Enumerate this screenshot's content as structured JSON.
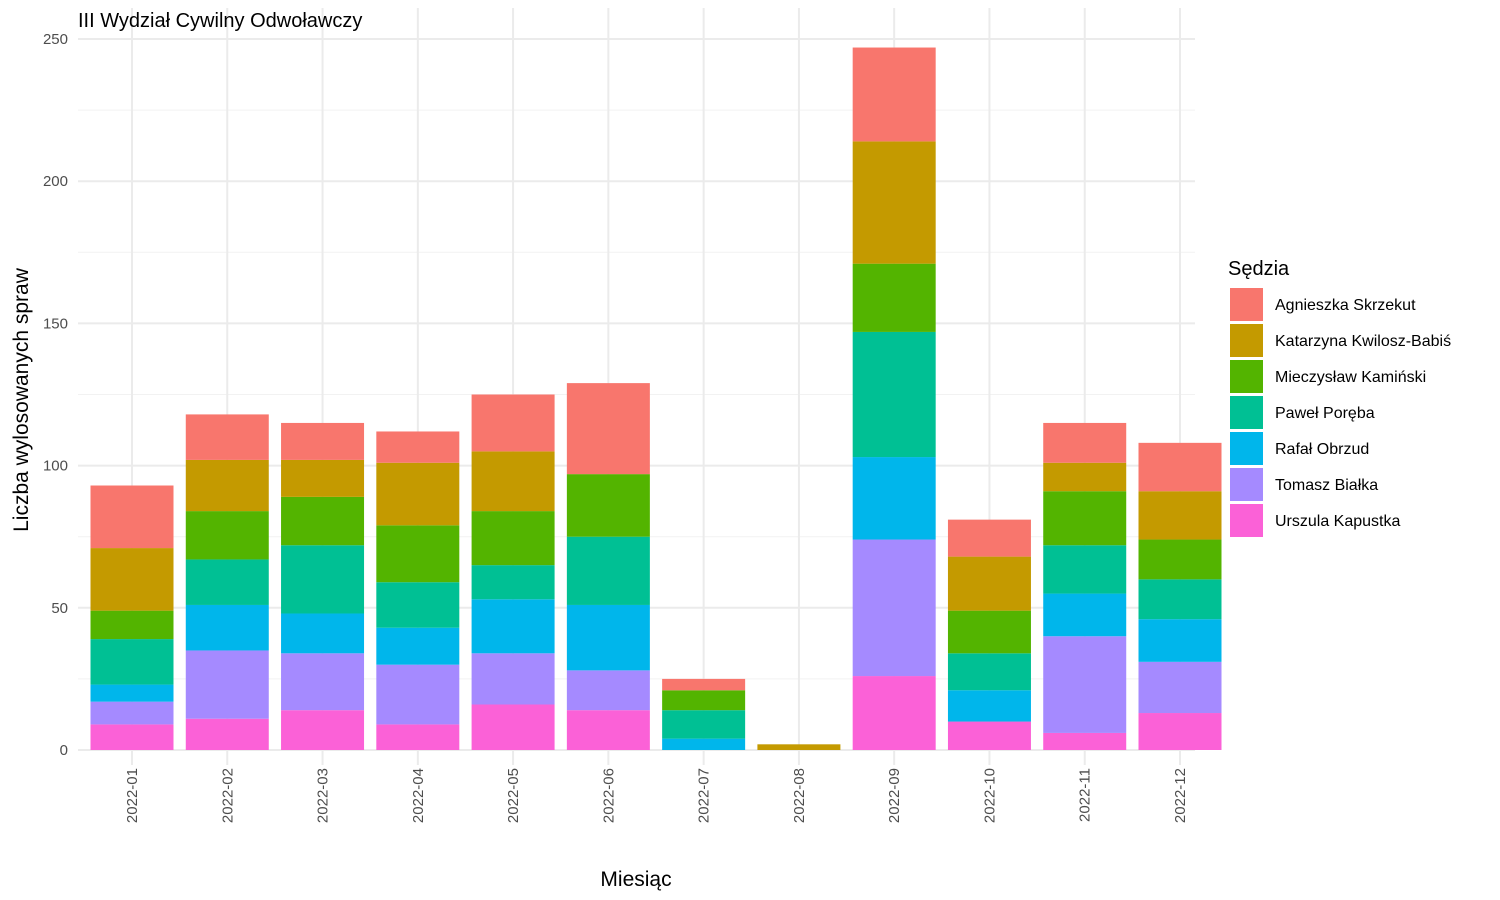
{
  "chart_data": {
    "type": "bar",
    "stacked": true,
    "title": "III Wydział Cywilny Odwoławczy",
    "xlabel": "Miesiąc",
    "ylabel": "Liczba wylosowanych spraw",
    "ylim": [
      0,
      255
    ],
    "yticks": [
      0,
      50,
      100,
      150,
      200,
      250
    ],
    "grid": true,
    "legend_position": "right",
    "legend_title": "Sędzia",
    "categories": [
      "2022-01",
      "2022-02",
      "2022-03",
      "2022-04",
      "2022-05",
      "2022-06",
      "2022-07",
      "2022-08",
      "2022-09",
      "2022-10",
      "2022-11",
      "2022-12"
    ],
    "series": [
      {
        "name": "Agnieszka Skrzekut",
        "color": "#F8766D",
        "values": [
          22,
          16,
          13,
          11,
          20,
          32,
          4,
          0,
          33,
          13,
          14,
          17
        ]
      },
      {
        "name": "Katarzyna Kwilosz-Babiś",
        "color": "#C49A00",
        "values": [
          22,
          18,
          13,
          22,
          21,
          0,
          0,
          2,
          43,
          19,
          10,
          17
        ]
      },
      {
        "name": "Mieczysław Kamiński",
        "color": "#53B400",
        "values": [
          10,
          17,
          17,
          20,
          19,
          22,
          7,
          0,
          24,
          15,
          19,
          14
        ]
      },
      {
        "name": "Paweł Poręba",
        "color": "#00C094",
        "values": [
          16,
          16,
          24,
          16,
          12,
          24,
          10,
          0,
          44,
          13,
          17,
          14
        ]
      },
      {
        "name": "Rafał Obrzud",
        "color": "#00B6EB",
        "values": [
          6,
          16,
          14,
          13,
          19,
          23,
          4,
          0,
          29,
          11,
          15,
          15
        ]
      },
      {
        "name": "Tomasz Białka",
        "color": "#A58AFF",
        "values": [
          8,
          24,
          20,
          21,
          18,
          14,
          0,
          0,
          48,
          0,
          34,
          18
        ]
      },
      {
        "name": "Urszula Kapustka",
        "color": "#FB61D7",
        "values": [
          9,
          11,
          14,
          9,
          16,
          14,
          0,
          0,
          26,
          10,
          6,
          13
        ]
      }
    ]
  }
}
